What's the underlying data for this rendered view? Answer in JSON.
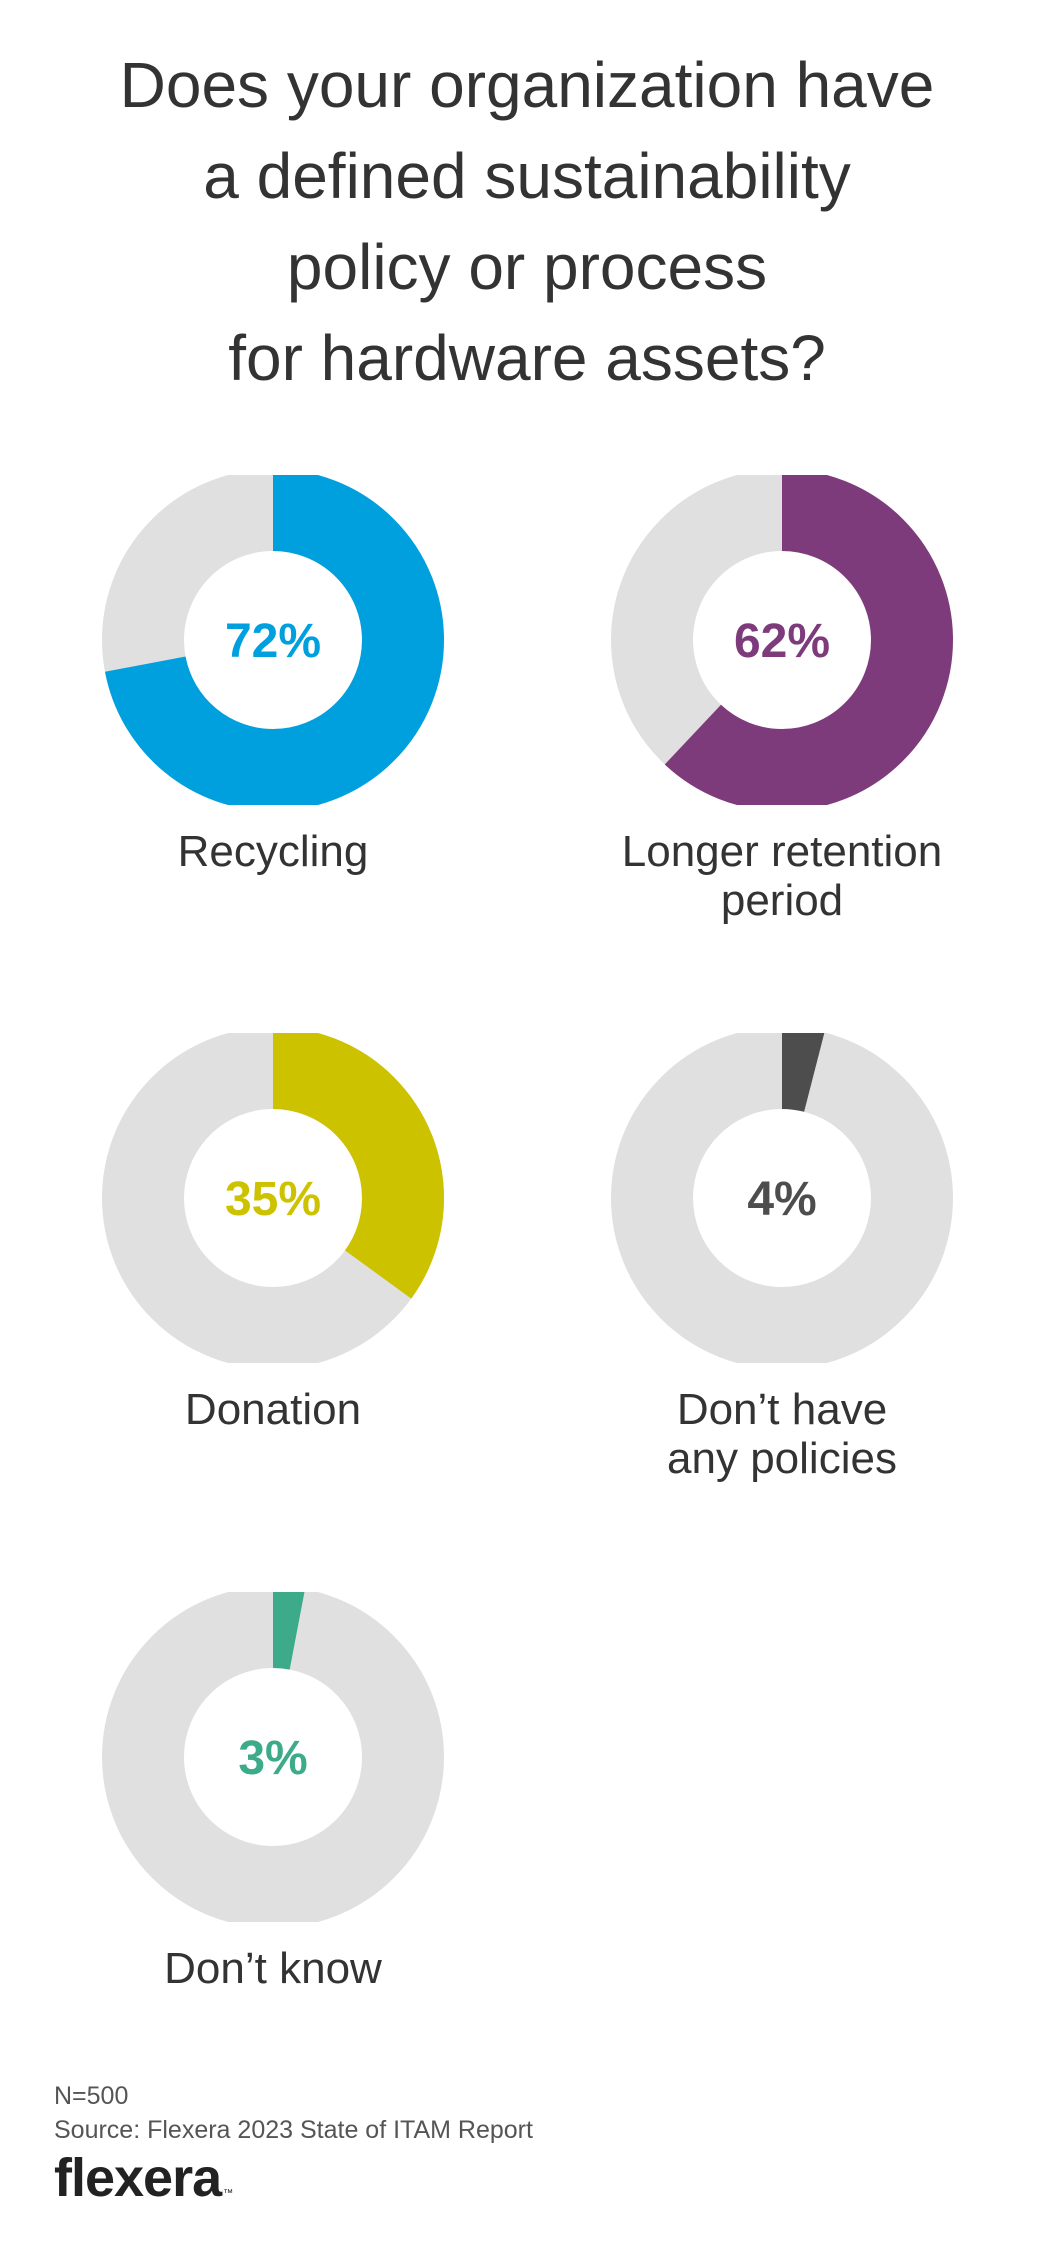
{
  "chart_data": {
    "type": "pie",
    "variant": "donut",
    "title_lines": [
      "Does your organization have",
      "a defined sustainability",
      "policy or process",
      "for hardware assets?"
    ],
    "remainder_color": "#e0e0e0",
    "series": [
      {
        "label_lines": [
          "Recycling"
        ],
        "value": 72,
        "value_label": "72%",
        "color": "#00a0df"
      },
      {
        "label_lines": [
          "Longer retention",
          "period"
        ],
        "value": 62,
        "value_label": "62%",
        "color": "#7e3b7c"
      },
      {
        "label_lines": [
          "Donation"
        ],
        "value": 35,
        "value_label": "35%",
        "color": "#cdc200"
      },
      {
        "label_lines": [
          "Don’t have",
          "any policies"
        ],
        "value": 4,
        "value_label": "4%",
        "color": "#4d4d4d"
      },
      {
        "label_lines": [
          "Don’t know"
        ],
        "value": 3,
        "value_label": "3%",
        "color": "#3daa8a"
      }
    ]
  },
  "footer": {
    "sample": "N=500",
    "source": "Source: Flexera 2023 State of ITAM Report",
    "logo_text": "flexera",
    "logo_mark": "™"
  }
}
